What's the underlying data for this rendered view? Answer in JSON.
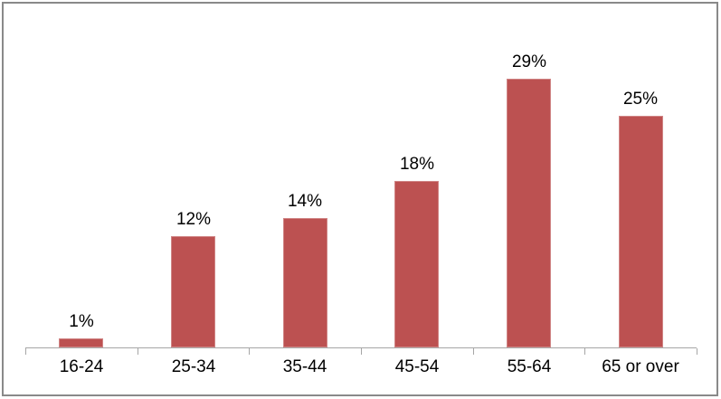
{
  "chart_data": {
    "type": "bar",
    "title": "",
    "categories": [
      "16-24",
      "25-34",
      "35-44",
      "45-54",
      "55-64",
      "65 or over"
    ],
    "values": [
      1,
      12,
      14,
      18,
      29,
      25
    ],
    "data_labels": [
      "1%",
      "12%",
      "14%",
      "18%",
      "29%",
      "25%"
    ],
    "xlabel": "",
    "ylabel": "",
    "ylim": [
      0,
      30
    ],
    "y_axis_visible": false,
    "grid": false,
    "legend": false,
    "data_labels_position": "above-bars",
    "colors": {
      "bar": "#bc5151",
      "axis": "#a6a6a6",
      "text": "#000000",
      "frame_border": "#898989",
      "background": "#ffffff"
    }
  }
}
